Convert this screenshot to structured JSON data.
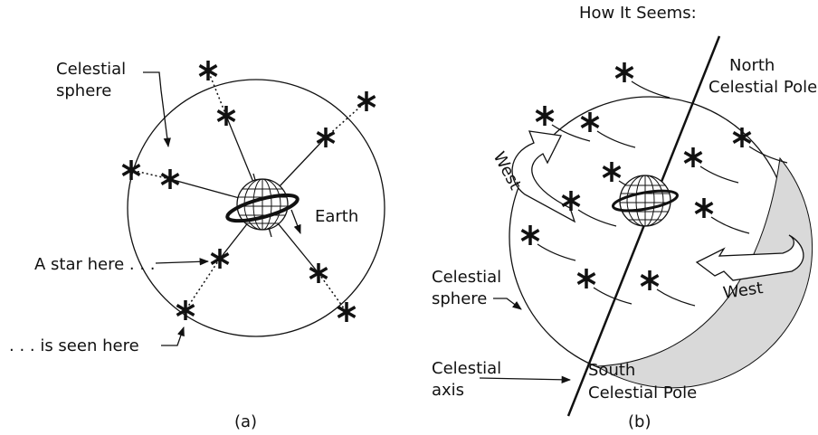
{
  "panel_a": {
    "celestial_sphere": [
      "Celestial",
      "sphere"
    ],
    "earth": "Earth",
    "star_here": "A star here . . .",
    "seen_here": ". . . is seen here",
    "caption": "(a)"
  },
  "panel_b": {
    "title": "How It Seems:",
    "north_pole": [
      "North",
      "Celestial Pole"
    ],
    "west_left": "West",
    "west_right": "West",
    "celestial_sphere": [
      "Celestial",
      "sphere"
    ],
    "celestial_axis": [
      "Celestial",
      "axis"
    ],
    "south_pole": [
      "South",
      "Celestial Pole"
    ],
    "caption": "(b)"
  }
}
